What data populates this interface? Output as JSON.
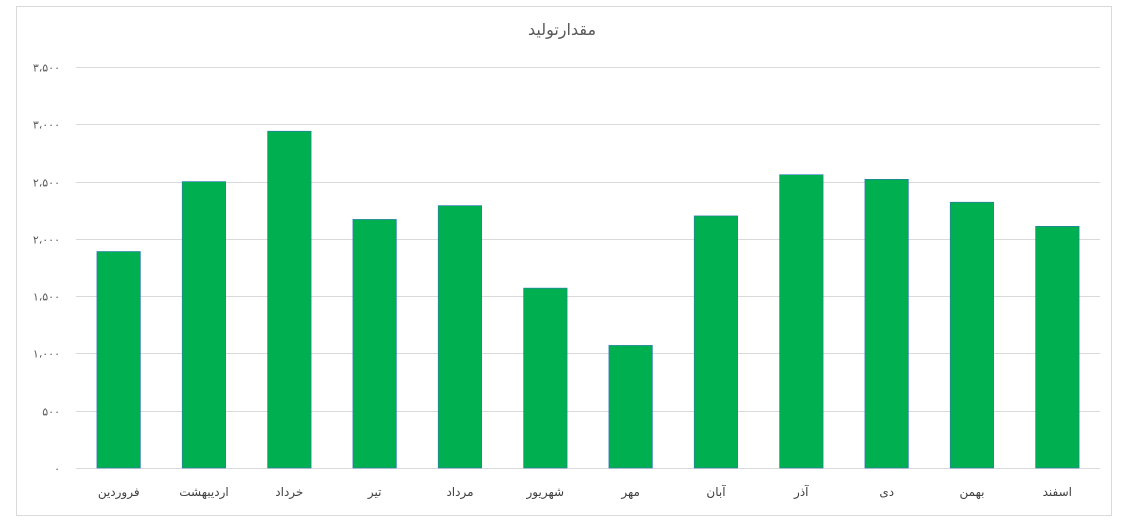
{
  "chart_data": {
    "type": "bar",
    "title": "مقدارتولید",
    "categories": [
      "فروردین",
      "اردیبهشت",
      "خرداد",
      "تیر",
      "مرداد",
      "شهریور",
      "مهر",
      "آبان",
      "آذر",
      "دی",
      "بهمن",
      "اسفند"
    ],
    "values": [
      1890,
      2500,
      2940,
      2170,
      2290,
      1570,
      1070,
      2200,
      2560,
      2520,
      2320,
      2110
    ],
    "ylim": [
      0,
      3500
    ],
    "ytick_labels": [
      "۰",
      "۵۰۰",
      "۱،۰۰۰",
      "۱،۵۰۰",
      "۲،۰۰۰",
      "۲،۵۰۰",
      "۳،۰۰۰",
      "۳،۵۰۰"
    ],
    "bar_color": "#00b050",
    "grid": true,
    "legend": "none"
  }
}
